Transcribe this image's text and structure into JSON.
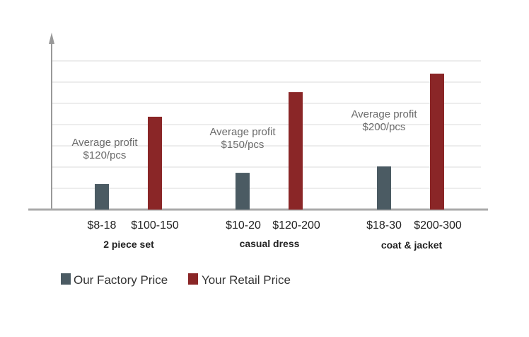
{
  "chart_data": {
    "type": "bar",
    "title": "",
    "xlabel": "",
    "ylabel": "",
    "ylim": [
      0,
      7
    ],
    "grid": true,
    "categories": [
      "2 piece set",
      "casual dress",
      "coat & jacket"
    ],
    "series": [
      {
        "name": "Our Factory Price",
        "color": "#4b5b63",
        "values": [
          1.2,
          1.73,
          2.03
        ],
        "price_labels": [
          "$8-18",
          "$10-20",
          "$18-30"
        ]
      },
      {
        "name": "Your Retail Price",
        "color": "#8a2627",
        "values": [
          4.37,
          5.53,
          6.4
        ],
        "price_labels": [
          "$100-150",
          "$120-200",
          "$200-300"
        ]
      }
    ],
    "annotations": [
      {
        "line1": "Average profit",
        "line2": "$120/pcs"
      },
      {
        "line1": "Average profit",
        "line2": "$150/pcs"
      },
      {
        "line1": "Average profit",
        "line2": "$200/pcs"
      }
    ],
    "legend_position": "bottom-left"
  }
}
